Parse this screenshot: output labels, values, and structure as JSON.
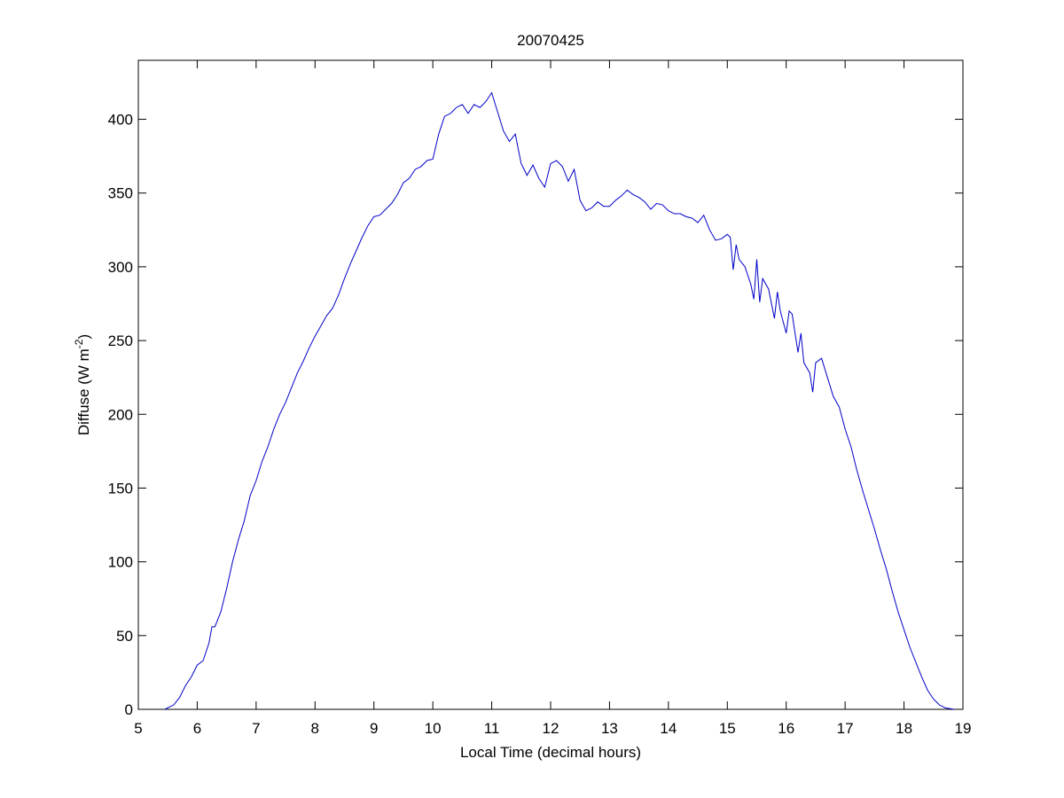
{
  "chart_data": {
    "type": "line",
    "title": "20070425",
    "x_label": "Local Time (decimal hours)",
    "y_label": {
      "text": "Diffuse (W m",
      "superscript": "-2",
      "suffix": ")"
    },
    "xlim": [
      5,
      19
    ],
    "xticks": [
      5,
      6,
      7,
      8,
      9,
      10,
      11,
      12,
      13,
      14,
      15,
      16,
      17,
      18,
      19
    ],
    "ylim": [
      0,
      440
    ],
    "yticks": [
      0,
      50,
      100,
      150,
      200,
      250,
      300,
      350,
      400
    ],
    "color": "#0000c8",
    "x": [
      5.45,
      5.6,
      5.7,
      5.8,
      5.9,
      6.0,
      6.1,
      6.2,
      6.25,
      6.3,
      6.4,
      6.5,
      6.6,
      6.7,
      6.8,
      6.9,
      7.0,
      7.1,
      7.2,
      7.3,
      7.4,
      7.5,
      7.6,
      7.7,
      7.8,
      7.9,
      8.0,
      8.1,
      8.2,
      8.3,
      8.4,
      8.5,
      8.6,
      8.7,
      8.8,
      8.9,
      9.0,
      9.1,
      9.2,
      9.3,
      9.4,
      9.5,
      9.6,
      9.7,
      9.8,
      9.9,
      10.0,
      10.1,
      10.2,
      10.3,
      10.4,
      10.5,
      10.6,
      10.7,
      10.8,
      10.9,
      11.0,
      11.1,
      11.2,
      11.3,
      11.4,
      11.5,
      11.6,
      11.7,
      11.8,
      11.9,
      12.0,
      12.1,
      12.2,
      12.3,
      12.4,
      12.5,
      12.6,
      12.7,
      12.8,
      12.9,
      13.0,
      13.1,
      13.2,
      13.3,
      13.4,
      13.5,
      13.6,
      13.7,
      13.8,
      13.9,
      14.0,
      14.1,
      14.2,
      14.3,
      14.4,
      14.5,
      14.6,
      14.7,
      14.8,
      14.9,
      15.0,
      15.05,
      15.1,
      15.15,
      15.2,
      15.3,
      15.4,
      15.45,
      15.5,
      15.55,
      15.6,
      15.7,
      15.8,
      15.85,
      15.9,
      16.0,
      16.05,
      16.1,
      16.2,
      16.25,
      16.3,
      16.4,
      16.45,
      16.5,
      16.6,
      16.7,
      16.8,
      16.9,
      17.0,
      17.1,
      17.2,
      17.3,
      17.4,
      17.5,
      17.6,
      17.7,
      17.8,
      17.9,
      18.0,
      18.1,
      18.2,
      18.3,
      18.4,
      18.5,
      18.6,
      18.7,
      18.85
    ],
    "values": [
      0,
      3,
      8,
      16,
      22,
      30,
      33,
      45,
      56,
      56,
      66,
      82,
      100,
      115,
      128,
      145,
      155,
      168,
      178,
      190,
      200,
      208,
      218,
      228,
      236,
      245,
      253,
      260,
      267,
      272,
      281,
      292,
      302,
      311,
      320,
      328,
      334,
      335,
      339,
      343,
      349,
      357,
      360,
      366,
      368,
      372,
      373,
      390,
      402,
      404,
      408,
      410,
      404,
      410,
      408,
      412,
      418,
      405,
      392,
      385,
      390,
      370,
      362,
      369,
      360,
      354,
      370,
      372,
      368,
      358,
      366,
      345,
      338,
      340,
      344,
      341,
      341,
      345,
      348,
      352,
      349,
      347,
      344,
      339,
      343,
      342,
      338,
      336,
      336,
      334,
      333,
      330,
      335,
      325,
      318,
      319,
      322,
      320,
      298,
      315,
      305,
      300,
      288,
      278,
      305,
      276,
      292,
      285,
      265,
      283,
      270,
      255,
      270,
      268,
      242,
      255,
      235,
      228,
      215,
      235,
      238,
      225,
      212,
      205,
      190,
      178,
      162,
      148,
      135,
      122,
      108,
      95,
      80,
      66,
      54,
      42,
      32,
      22,
      13,
      7,
      3,
      1,
      0
    ]
  }
}
